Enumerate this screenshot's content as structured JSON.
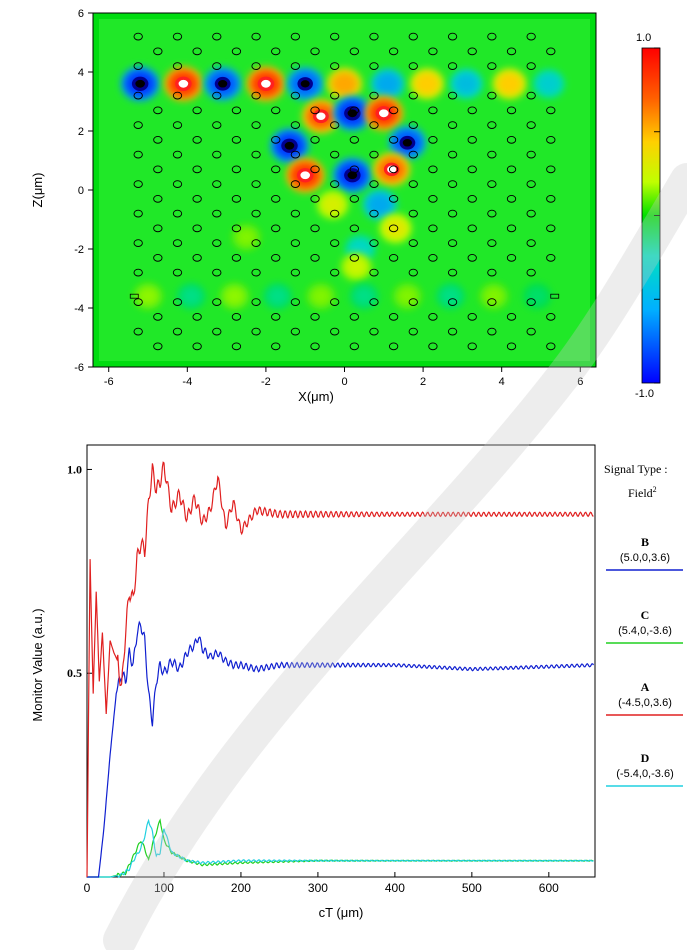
{
  "chart_data": [
    {
      "type": "heatmap",
      "ylabel": "Z(μm)",
      "xlabel": "X(μm)",
      "xlim": [
        -6.4,
        6.4
      ],
      "ylim": [
        -6,
        6
      ],
      "xticks": [
        "-6",
        "-4",
        "-2",
        "0",
        "2",
        "4",
        "6"
      ],
      "yticks": [
        "6",
        "4",
        "2",
        "0",
        "-2",
        "-4",
        "-6"
      ],
      "colorbar": {
        "min_label": "-1.0",
        "max_label": "1.0",
        "range": [
          -1,
          1
        ]
      },
      "colorscale": [
        "#0000ff",
        "#00b0ff",
        "#00e0c0",
        "#00e000",
        "#c0ff00",
        "#ffd000",
        "#ff6000",
        "#ff0000"
      ],
      "hotspots": [
        {
          "x": -5.2,
          "z": 3.6,
          "v": -1.0
        },
        {
          "x": -4.1,
          "z": 3.6,
          "v": 1.0
        },
        {
          "x": -3.1,
          "z": 3.6,
          "v": -0.9
        },
        {
          "x": -2.0,
          "z": 3.6,
          "v": 1.0
        },
        {
          "x": -1.0,
          "z": 3.6,
          "v": -0.85
        },
        {
          "x": 0.0,
          "z": 3.6,
          "v": 0.7
        },
        {
          "x": 1.1,
          "z": 3.6,
          "v": -0.6
        },
        {
          "x": 2.1,
          "z": 3.6,
          "v": 0.6
        },
        {
          "x": 3.1,
          "z": 3.6,
          "v": -0.5
        },
        {
          "x": 4.2,
          "z": 3.6,
          "v": 0.6
        },
        {
          "x": 5.2,
          "z": 3.6,
          "v": -0.4
        },
        {
          "x": -0.6,
          "z": 2.5,
          "v": 0.9
        },
        {
          "x": 0.2,
          "z": 2.6,
          "v": -1.0
        },
        {
          "x": 1.0,
          "z": 2.6,
          "v": 1.0
        },
        {
          "x": -1.4,
          "z": 1.5,
          "v": -1.0
        },
        {
          "x": 1.6,
          "z": 1.6,
          "v": -0.9
        },
        {
          "x": -1.0,
          "z": 0.5,
          "v": 1.0
        },
        {
          "x": 0.2,
          "z": 0.5,
          "v": -1.0
        },
        {
          "x": 1.2,
          "z": 0.7,
          "v": 0.85
        },
        {
          "x": -0.3,
          "z": -0.5,
          "v": 0.4
        },
        {
          "x": 0.9,
          "z": -0.5,
          "v": -0.6
        },
        {
          "x": 1.3,
          "z": -1.3,
          "v": 0.45
        },
        {
          "x": 0.4,
          "z": -2.0,
          "v": -0.35
        },
        {
          "x": 0.3,
          "z": -2.6,
          "v": 0.35
        },
        {
          "x": -2.5,
          "z": -1.6,
          "v": 0.2
        },
        {
          "x": -5.0,
          "z": -3.6,
          "v": 0.22
        },
        {
          "x": -3.9,
          "z": -3.6,
          "v": -0.2
        },
        {
          "x": -2.8,
          "z": -3.6,
          "v": 0.22
        },
        {
          "x": -1.7,
          "z": -3.6,
          "v": -0.2
        },
        {
          "x": -0.6,
          "z": -3.6,
          "v": 0.2
        },
        {
          "x": 0.5,
          "z": -3.6,
          "v": -0.2
        },
        {
          "x": 1.6,
          "z": -3.6,
          "v": 0.2
        },
        {
          "x": 2.7,
          "z": -3.6,
          "v": -0.2
        },
        {
          "x": 3.8,
          "z": -3.6,
          "v": 0.2
        },
        {
          "x": 4.9,
          "z": -3.6,
          "v": -0.15
        }
      ]
    },
    {
      "type": "line",
      "xlabel": "cT (μm)",
      "ylabel": "Monitor Value (a.u.)",
      "xlim": [
        0,
        660
      ],
      "ylim": [
        0,
        1.06
      ],
      "xticks": [
        "0",
        "100",
        "200",
        "300",
        "400",
        "500",
        "600"
      ],
      "yticks": [
        "0.5",
        "1.0"
      ],
      "legend_title": "Signal Type :",
      "legend_subtitle": "Field",
      "legend_subtitle_sup": "2",
      "series": [
        {
          "name": "B",
          "position": "(5.0,0,3.6)",
          "color": "#1020d0",
          "x": [
            0,
            15,
            22,
            30,
            38,
            45,
            50,
            55,
            60,
            65,
            70,
            75,
            80,
            85,
            90,
            95,
            100,
            110,
            120,
            130,
            140,
            145,
            150,
            160,
            170,
            180,
            190,
            200,
            220,
            250,
            300,
            400,
            500,
            660
          ],
          "y": [
            0,
            0,
            0.12,
            0.3,
            0.45,
            0.5,
            0.48,
            0.55,
            0.52,
            0.6,
            0.62,
            0.58,
            0.45,
            0.38,
            0.48,
            0.52,
            0.5,
            0.53,
            0.51,
            0.55,
            0.57,
            0.59,
            0.56,
            0.54,
            0.55,
            0.53,
            0.52,
            0.52,
            0.51,
            0.52,
            0.52,
            0.52,
            0.51,
            0.52
          ]
        },
        {
          "name": "C",
          "position": "(5.4,0,-3.6)",
          "color": "#20d020",
          "x": [
            0,
            30,
            40,
            50,
            60,
            70,
            75,
            80,
            85,
            90,
            95,
            100,
            110,
            120,
            130,
            150,
            200,
            300,
            400,
            500,
            660
          ],
          "y": [
            0,
            0,
            0.005,
            0.01,
            0.05,
            0.09,
            0.07,
            0.04,
            0.08,
            0.11,
            0.14,
            0.09,
            0.06,
            0.05,
            0.04,
            0.03,
            0.035,
            0.04,
            0.04,
            0.04,
            0.04
          ]
        },
        {
          "name": "A",
          "position": "(-4.5,0,3.6)",
          "color": "#e02020",
          "x": [
            0,
            4,
            8,
            12,
            16,
            20,
            25,
            30,
            35,
            40,
            45,
            50,
            55,
            60,
            65,
            70,
            75,
            80,
            85,
            90,
            95,
            100,
            110,
            120,
            130,
            140,
            150,
            160,
            170,
            180,
            190,
            200,
            220,
            250,
            300,
            350,
            400,
            450,
            500,
            550,
            600,
            660
          ],
          "y": [
            0,
            0.78,
            0.45,
            0.7,
            0.48,
            0.6,
            0.4,
            0.58,
            0.55,
            0.53,
            0.46,
            0.6,
            0.7,
            0.68,
            0.78,
            0.82,
            0.8,
            0.92,
            1.0,
            0.95,
            0.97,
            1.01,
            0.9,
            0.94,
            0.88,
            0.93,
            0.87,
            0.9,
            0.98,
            0.86,
            0.92,
            0.85,
            0.9,
            0.89,
            0.89,
            0.89,
            0.89,
            0.89,
            0.89,
            0.89,
            0.89,
            0.89
          ]
        },
        {
          "name": "D",
          "position": "(-5.4,0,-3.6)",
          "color": "#20d0e0",
          "x": [
            0,
            30,
            45,
            55,
            60,
            70,
            75,
            80,
            85,
            90,
            95,
            100,
            105,
            110,
            120,
            130,
            150,
            200,
            300,
            400,
            500,
            660
          ],
          "y": [
            0,
            0,
            0.005,
            0.02,
            0.04,
            0.07,
            0.1,
            0.14,
            0.11,
            0.05,
            0.06,
            0.12,
            0.09,
            0.06,
            0.05,
            0.04,
            0.035,
            0.04,
            0.04,
            0.04,
            0.04,
            0.04
          ]
        }
      ],
      "legend_order": [
        "B",
        "C",
        "A",
        "D"
      ]
    }
  ]
}
